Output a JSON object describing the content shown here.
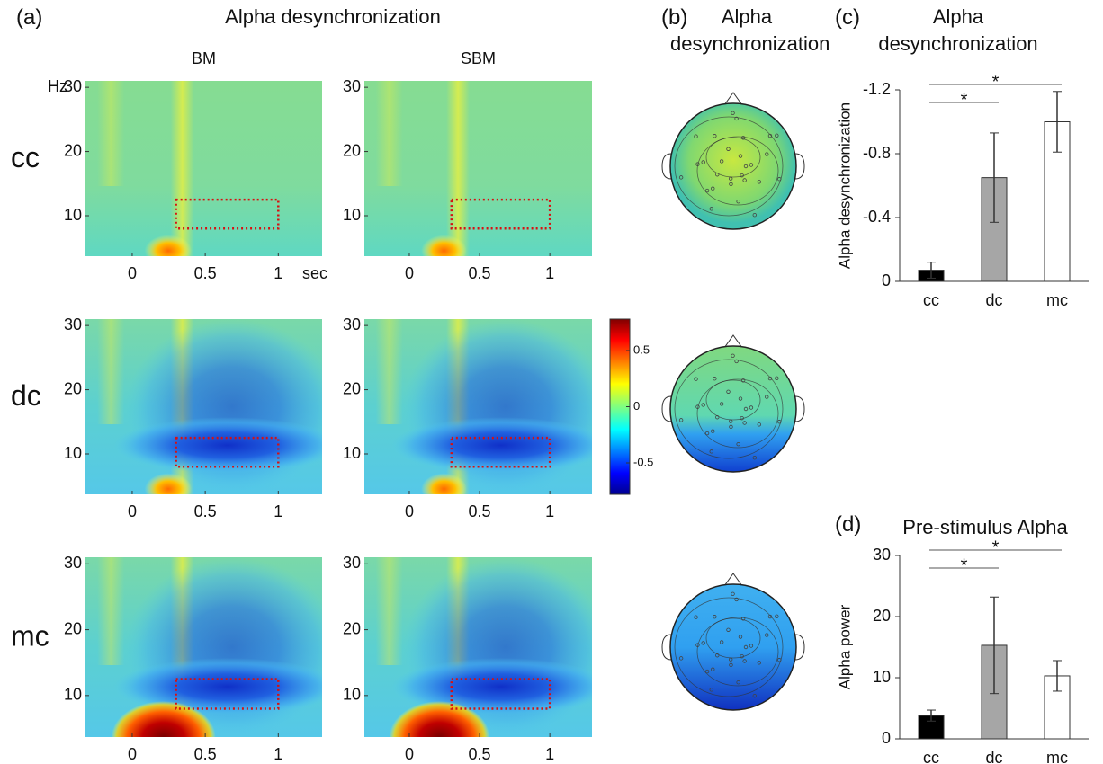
{
  "panels": [
    {
      "label": "(a)",
      "title": "Alpha desynchronization"
    },
    {
      "label": "(b)",
      "title": "Alpha desynchronization"
    },
    {
      "label": "(c)"
    },
    {
      "label": "(d)"
    }
  ],
  "chart_data": [
    {
      "type": "heatmap",
      "title": "BM",
      "row_label": "cc",
      "xlabel": "sec",
      "ylabel": "Hz",
      "xlim": [
        -0.32,
        1.3
      ],
      "ylim": [
        3.7,
        31
      ],
      "xticks": [
        0,
        0.5,
        1
      ],
      "yticks": [
        10,
        20,
        30
      ],
      "roi": {
        "x": [
          0.3,
          1
        ],
        "y": [
          8,
          12.5
        ]
      }
    },
    {
      "type": "heatmap",
      "title": "SBM",
      "xlim": [
        -0.32,
        1.3
      ],
      "ylim": [
        3.7,
        31
      ],
      "xticks": [
        0,
        0.5,
        1
      ],
      "yticks": [
        10,
        20,
        30
      ],
      "roi": {
        "x": [
          0.3,
          1
        ],
        "y": [
          8,
          12.5
        ]
      }
    },
    {
      "type": "heatmap",
      "row_label": "dc",
      "xlim": [
        -0.32,
        1.3
      ],
      "ylim": [
        3.7,
        31
      ],
      "xticks": [
        0,
        0.5,
        1
      ],
      "yticks": [
        10,
        20,
        30
      ],
      "roi": {
        "x": [
          0.3,
          1
        ],
        "y": [
          8,
          12.5
        ]
      }
    },
    {
      "type": "heatmap",
      "xlim": [
        -0.32,
        1.3
      ],
      "ylim": [
        3.7,
        31
      ],
      "xticks": [
        0,
        0.5,
        1
      ],
      "yticks": [
        10,
        20,
        30
      ],
      "roi": {
        "x": [
          0.3,
          1
        ],
        "y": [
          8,
          12.5
        ]
      }
    },
    {
      "type": "heatmap",
      "row_label": "mc",
      "xlim": [
        -0.32,
        1.3
      ],
      "ylim": [
        3.7,
        31
      ],
      "xticks": [
        0,
        0.5,
        1
      ],
      "yticks": [
        10,
        20,
        30
      ],
      "roi": {
        "x": [
          0.3,
          1
        ],
        "y": [
          8,
          12.5
        ]
      }
    },
    {
      "type": "heatmap",
      "xlim": [
        -0.32,
        1.3
      ],
      "ylim": [
        3.7,
        31
      ],
      "xticks": [
        0,
        0.5,
        1
      ],
      "yticks": [
        10,
        20,
        30
      ],
      "roi": {
        "x": [
          0.3,
          1
        ],
        "y": [
          8,
          12.5
        ]
      }
    },
    {
      "type": "colorbar",
      "ylim": [
        -0.78,
        0.78
      ],
      "yticks": [
        0.5,
        0,
        -0.5
      ]
    },
    {
      "type": "topomap"
    },
    {
      "type": "topomap"
    },
    {
      "type": "topomap"
    },
    {
      "type": "bar",
      "title": "Alpha desynchronization",
      "ylabel": "Alpha desynchronization",
      "categories": [
        "cc",
        "dc",
        "mc"
      ],
      "values": [
        -0.07,
        -0.65,
        -1.0
      ],
      "errors": [
        0.05,
        0.28,
        0.19
      ],
      "colors": [
        "#000000",
        "#a6a6a6",
        "#ffffff"
      ],
      "ylim": [
        0,
        -1.2
      ],
      "yticks": [
        -1.2,
        -0.8,
        -0.4,
        0
      ],
      "significance": [
        {
          "pair": [
            0,
            1
          ],
          "label": "*"
        },
        {
          "pair": [
            0,
            2
          ],
          "label": "*"
        }
      ]
    },
    {
      "type": "bar",
      "title": "Pre-stimulus Alpha",
      "ylabel": "Alpha power",
      "categories": [
        "cc",
        "dc",
        "mc"
      ],
      "values": [
        3.8,
        15.3,
        10.3
      ],
      "errors": [
        0.9,
        7.9,
        2.5
      ],
      "colors": [
        "#000000",
        "#a6a6a6",
        "#ffffff"
      ],
      "ylim": [
        0,
        30
      ],
      "yticks": [
        0,
        10,
        20,
        30
      ],
      "significance": [
        {
          "pair": [
            0,
            1
          ],
          "label": "*"
        },
        {
          "pair": [
            0,
            2
          ],
          "label": "*"
        }
      ]
    }
  ]
}
